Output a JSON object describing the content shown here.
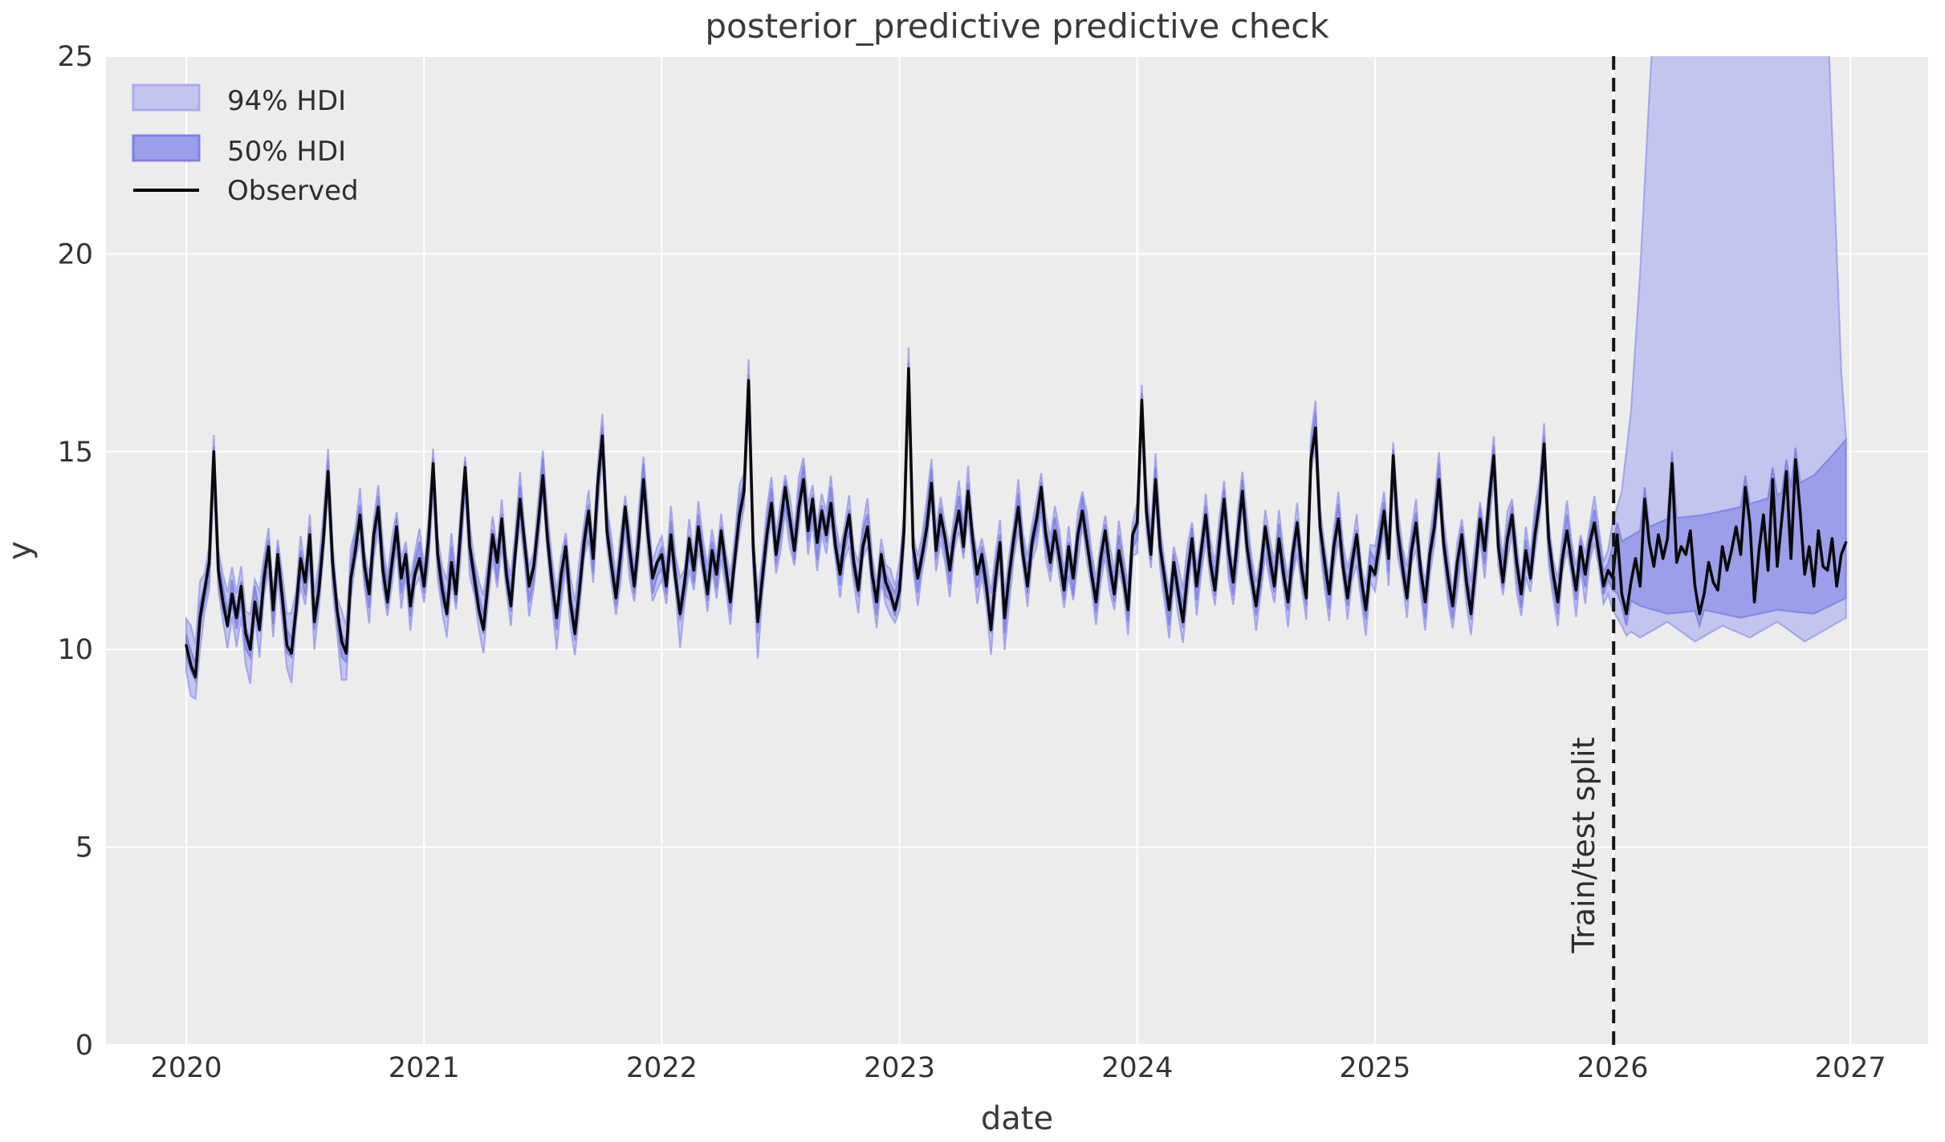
{
  "annotations": {
    "split_label": "Train/test split",
    "split_x": 2026.004
  },
  "legend": {
    "items": [
      {
        "label": "94% HDI",
        "type": "patch",
        "fill": "#c4c5ee",
        "edge": "#aaacee"
      },
      {
        "label": "50% HDI",
        "type": "patch",
        "fill": "#9b9ee8",
        "edge": "#7d81e6"
      },
      {
        "label": "Observed",
        "type": "line",
        "color": "#000000"
      }
    ]
  },
  "colors": {
    "figure_bg": "#ffffff",
    "plot_bg": "#ececec",
    "grid": "#ffffff",
    "observed": "#0a0a0a",
    "hdi94_fill": "#c4c5ee",
    "hdi94_edge": "#9b9ee9",
    "hdi50_fill": "#9b9ee8",
    "hdi50_edge": "#7d81e2",
    "split_line": "#141414",
    "text": "#333333"
  },
  "chart_data": {
    "type": "line",
    "title": "posterior_predictive predictive check",
    "xlabel": "date",
    "ylabel": "y",
    "xlim": [
      2019.662,
      2027.327
    ],
    "ylim": [
      0,
      25
    ],
    "xticks": [
      2020,
      2021,
      2022,
      2023,
      2024,
      2025,
      2026,
      2027
    ],
    "yticks": [
      0,
      5,
      10,
      15,
      20,
      25
    ],
    "grid": true,
    "legend_position": "upper left",
    "x_start": 2020,
    "points_per_year": 52,
    "split_index": 312,
    "series": [
      {
        "name": "Observed",
        "values": [
          10.1,
          9.6,
          9.3,
          10.8,
          11.5,
          12.2,
          15.0,
          12.0,
          11.2,
          10.6,
          11.4,
          10.8,
          11.6,
          10.4,
          10.0,
          11.2,
          10.5,
          11.8,
          12.6,
          11.0,
          12.4,
          11.3,
          10.1,
          9.9,
          11.0,
          12.3,
          11.7,
          12.9,
          10.7,
          11.5,
          12.8,
          14.5,
          12.2,
          11.0,
          10.2,
          9.9,
          11.8,
          12.5,
          13.4,
          12.1,
          11.4,
          12.9,
          13.6,
          12.0,
          11.2,
          12.2,
          13.1,
          11.8,
          12.4,
          11.1,
          11.9,
          12.3,
          11.6,
          12.8,
          14.7,
          12.4,
          11.5,
          10.9,
          12.2,
          11.4,
          13.0,
          14.6,
          12.6,
          11.8,
          11.0,
          10.5,
          11.7,
          12.9,
          12.2,
          13.3,
          11.9,
          11.1,
          12.5,
          13.8,
          12.7,
          11.6,
          12.1,
          13.2,
          14.4,
          12.8,
          11.7,
          10.8,
          11.9,
          12.6,
          11.2,
          10.4,
          11.5,
          12.7,
          13.5,
          12.3,
          14.2,
          15.4,
          13.0,
          12.1,
          11.3,
          12.4,
          13.6,
          12.5,
          11.6,
          12.8,
          14.3,
          12.9,
          11.8,
          12.2,
          12.4,
          11.6,
          12.9,
          11.8,
          10.9,
          11.7,
          12.8,
          12.0,
          13.1,
          12.2,
          11.4,
          12.5,
          11.9,
          13.0,
          12.1,
          11.2,
          12.3,
          13.4,
          14.0,
          16.8,
          12.6,
          10.7,
          11.8,
          12.9,
          13.7,
          12.4,
          13.2,
          14.1,
          13.3,
          12.5,
          13.6,
          14.3,
          13.0,
          13.8,
          12.7,
          13.5,
          12.9,
          13.7,
          12.6,
          11.9,
          12.8,
          13.4,
          12.2,
          11.5,
          12.6,
          13.1,
          11.9,
          11.2,
          12.4,
          11.7,
          11.4,
          11.0,
          11.5,
          13.0,
          17.1,
          12.6,
          11.8,
          12.4,
          13.1,
          14.2,
          12.5,
          13.4,
          12.8,
          12.0,
          12.9,
          13.5,
          12.6,
          14.0,
          12.8,
          11.9,
          12.4,
          11.6,
          10.5,
          11.8,
          12.7,
          10.8,
          11.9,
          12.8,
          13.6,
          12.4,
          11.6,
          12.7,
          13.3,
          14.1,
          12.9,
          12.2,
          13.0,
          12.3,
          11.5,
          12.6,
          11.8,
          12.9,
          13.5,
          12.7,
          11.9,
          11.2,
          12.3,
          13.0,
          12.1,
          11.4,
          12.5,
          11.8,
          11.0,
          12.9,
          13.2,
          16.3,
          13.5,
          12.4,
          14.3,
          12.6,
          11.8,
          11.0,
          12.2,
          11.4,
          10.7,
          11.9,
          12.8,
          11.6,
          12.5,
          13.4,
          12.2,
          11.5,
          12.7,
          13.8,
          12.5,
          11.7,
          12.9,
          14.0,
          12.6,
          11.8,
          11.1,
          12.0,
          13.1,
          12.3,
          11.6,
          12.8,
          11.9,
          11.2,
          12.4,
          13.2,
          12.0,
          11.3,
          14.8,
          15.6,
          13.1,
          12.2,
          11.4,
          12.6,
          13.3,
          12.1,
          11.3,
          12.2,
          12.9,
          11.8,
          11.0,
          12.1,
          11.9,
          12.7,
          13.5,
          12.3,
          14.9,
          13.0,
          12.1,
          11.3,
          12.5,
          13.2,
          12.0,
          11.2,
          12.4,
          13.1,
          14.3,
          12.7,
          11.8,
          11.1,
          12.2,
          12.9,
          11.7,
          10.9,
          12.1,
          13.3,
          12.5,
          13.8,
          14.9,
          12.6,
          11.7,
          12.8,
          13.4,
          12.2,
          11.4,
          12.5,
          11.8,
          12.9,
          13.7,
          15.2,
          12.8,
          11.9,
          11.2,
          12.3,
          13.0,
          12.2,
          11.5,
          12.6,
          11.9,
          12.7,
          13.2,
          12.4,
          11.6,
          12.0,
          11.8,
          12.9,
          11.4,
          10.9,
          11.7,
          12.3,
          11.6,
          13.8,
          12.7,
          12.1,
          12.9,
          12.3,
          12.8,
          14.7,
          12.2,
          12.6,
          12.4,
          13.0,
          11.6,
          10.9,
          11.4,
          12.2,
          11.7,
          11.5,
          12.6,
          12.0,
          12.5,
          13.1,
          12.4,
          14.1,
          13.2,
          11.2,
          12.5,
          13.4,
          12.0,
          14.3,
          12.1,
          13.3,
          14.5,
          12.3,
          14.8,
          13.5,
          11.9,
          12.6,
          11.6,
          13.0,
          12.1,
          12.0,
          12.8,
          11.6,
          12.4,
          12.7
        ]
      }
    ],
    "train_band": {
      "center_wobble_amp": 0.14,
      "center_wobble_freq": 0.9,
      "hdi94_halfwidth_base": 0.42,
      "hdi94_halfwidth_amp": 0.22,
      "hdi94_halfwidth_freq": 1.7,
      "hdi94_low_dip_extra": 0.25,
      "hdi50_halfwidth_base": 0.2,
      "hdi50_halfwidth_amp": 0.1,
      "hdi50_halfwidth_freq": 1.3,
      "hug_94": 0.55,
      "hug_50": 0.3
    },
    "forecast_band": {
      "hdi94_lower": [
        [
          0,
          11.0
        ],
        [
          2,
          10.6
        ],
        [
          6,
          10.3
        ],
        [
          12,
          10.7
        ],
        [
          18,
          10.2
        ],
        [
          24,
          10.6
        ],
        [
          30,
          10.3
        ],
        [
          36,
          10.7
        ],
        [
          42,
          10.2
        ],
        [
          48,
          10.6
        ],
        [
          51,
          10.8
        ]
      ],
      "hdi94_upper": [
        [
          0,
          13.2
        ],
        [
          2,
          14.0
        ],
        [
          4,
          16.0
        ],
        [
          6,
          19.5
        ],
        [
          8,
          24.0
        ],
        [
          10,
          28.0
        ],
        [
          44,
          28.0
        ],
        [
          47,
          26.0
        ],
        [
          49,
          20.0
        ],
        [
          50,
          17.0
        ],
        [
          51,
          15.4
        ]
      ],
      "hdi50_lower": [
        [
          0,
          11.5
        ],
        [
          6,
          11.1
        ],
        [
          12,
          10.9
        ],
        [
          20,
          11.0
        ],
        [
          28,
          10.8
        ],
        [
          36,
          11.0
        ],
        [
          44,
          10.9
        ],
        [
          51,
          11.3
        ]
      ],
      "hdi50_upper": [
        [
          0,
          12.6
        ],
        [
          6,
          13.0
        ],
        [
          12,
          13.3
        ],
        [
          20,
          13.4
        ],
        [
          28,
          13.6
        ],
        [
          36,
          13.9
        ],
        [
          44,
          14.4
        ],
        [
          48,
          14.9
        ],
        [
          51,
          15.3
        ]
      ]
    }
  }
}
